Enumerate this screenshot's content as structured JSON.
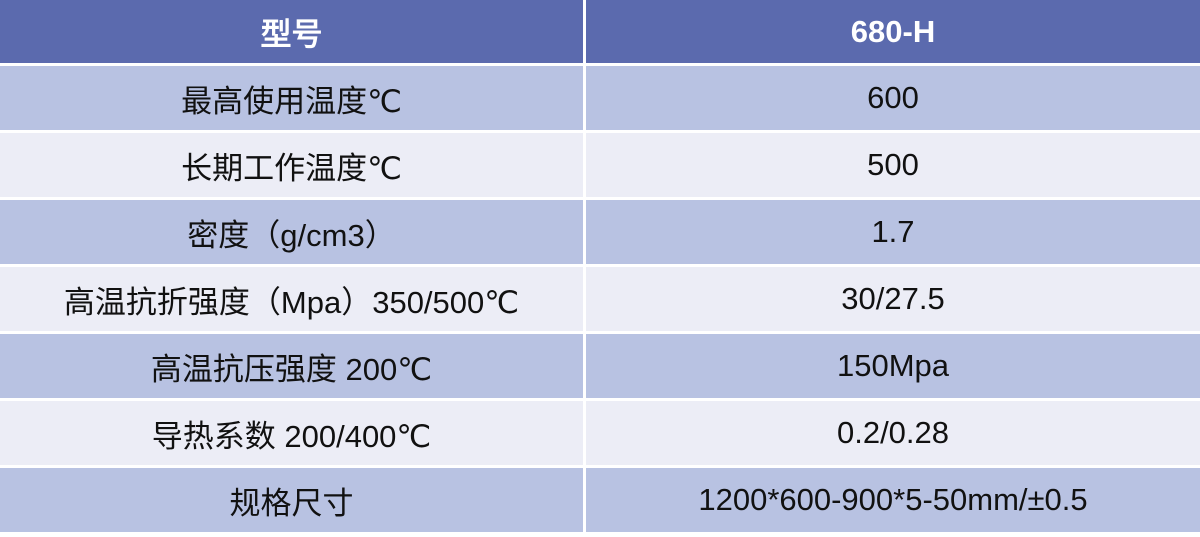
{
  "colors": {
    "header": "#5b6aae",
    "row_dark": "#b8c2e2",
    "row_light": "#ecedf6"
  },
  "header": {
    "col1": "型号",
    "col2": "680-H"
  },
  "rows": [
    {
      "label": "最高使用温度℃",
      "value": "600"
    },
    {
      "label": "长期工作温度℃",
      "value": "500"
    },
    {
      "label": "密度（g/cm3）",
      "value": "1.7"
    },
    {
      "label": "高温抗折强度（Mpa）350/500℃",
      "value": "30/27.5"
    },
    {
      "label": "高温抗压强度 200℃",
      "value": "150Mpa"
    },
    {
      "label": "导热系数 200/400℃",
      "value": "0.2/0.28"
    },
    {
      "label": "规格尺寸",
      "value": "1200*600-900*5-50mm/±0.5"
    }
  ]
}
